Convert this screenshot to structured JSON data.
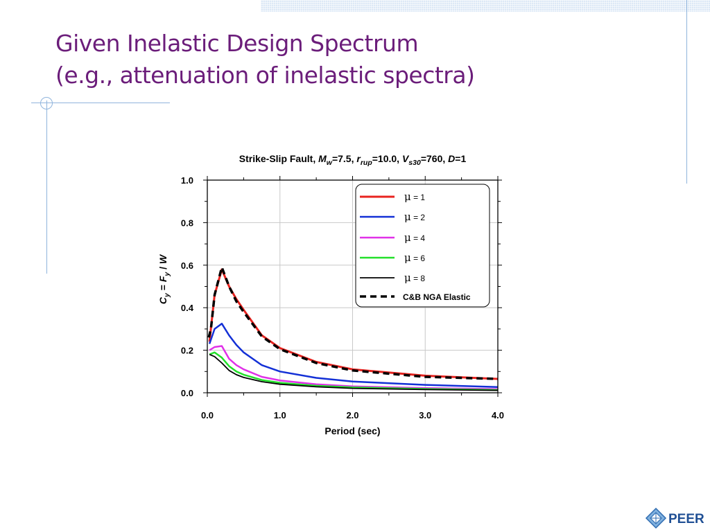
{
  "slide": {
    "title_line1": "Given Inelastic Design Spectrum",
    "title_line2": "(e.g., attenuation of inelastic spectra)",
    "logo_text": "PEER"
  },
  "colors": {
    "title": "#6b1d7a",
    "decor": "#8fb4dc",
    "band": "#dce8f6"
  },
  "chart_data": {
    "type": "line",
    "title_parts": [
      {
        "t": "Strike-Slip Fault, ",
        "style": "normal",
        "shift": "none"
      },
      {
        "t": "M",
        "style": "italic",
        "shift": "none"
      },
      {
        "t": "w",
        "style": "italic",
        "shift": "sub"
      },
      {
        "t": "=7.5, ",
        "style": "normal",
        "shift": "none"
      },
      {
        "t": "r",
        "style": "italic",
        "shift": "none"
      },
      {
        "t": "rup",
        "style": "italic",
        "shift": "sub"
      },
      {
        "t": "=10.0, ",
        "style": "normal",
        "shift": "none"
      },
      {
        "t": "V",
        "style": "italic",
        "shift": "none"
      },
      {
        "t": "s30",
        "style": "italic",
        "shift": "sub"
      },
      {
        "t": "=760, ",
        "style": "normal",
        "shift": "none"
      },
      {
        "t": "D",
        "style": "italic",
        "shift": "none"
      },
      {
        "t": "=1",
        "style": "normal",
        "shift": "none"
      }
    ],
    "xlabel": "Period (sec)",
    "ylabel_parts": [
      {
        "t": "C",
        "style": "italic",
        "shift": "none"
      },
      {
        "t": "y",
        "style": "italic",
        "shift": "sub"
      },
      {
        "t": " = ",
        "style": "normal",
        "shift": "none"
      },
      {
        "t": "F",
        "style": "italic",
        "shift": "none"
      },
      {
        "t": "y",
        "style": "italic",
        "shift": "sub"
      },
      {
        "t": " / ",
        "style": "normal",
        "shift": "none"
      },
      {
        "t": "W",
        "style": "italic",
        "shift": "none"
      }
    ],
    "xlim": [
      0,
      4
    ],
    "ylim": [
      0,
      1
    ],
    "xticks": [
      0,
      1,
      2,
      3,
      4
    ],
    "xtick_labels": [
      "0.0",
      "1.0",
      "2.0",
      "3.0",
      "4.0"
    ],
    "yticks": [
      0,
      0.2,
      0.4,
      0.6,
      0.8,
      1.0
    ],
    "ytick_labels": [
      "0.0",
      "0.2",
      "0.4",
      "0.6",
      "0.8",
      "1.0"
    ],
    "grid": true,
    "legend_position": "top-right",
    "series": [
      {
        "name": "μ = 1",
        "legend_symbol": "μ",
        "legend_text": " = 1",
        "color": "#e8231f",
        "dash": "solid",
        "width": 3,
        "x": [
          0.03,
          0.1,
          0.2,
          0.3,
          0.4,
          0.5,
          0.75,
          1.0,
          1.5,
          2.0,
          3.0,
          4.0
        ],
        "y": [
          0.24,
          0.46,
          0.58,
          0.5,
          0.44,
          0.39,
          0.27,
          0.21,
          0.145,
          0.11,
          0.08,
          0.065
        ]
      },
      {
        "name": "μ = 2",
        "legend_symbol": "μ",
        "legend_text": " = 2",
        "color": "#1330d6",
        "dash": "solid",
        "width": 2.5,
        "x": [
          0.03,
          0.1,
          0.2,
          0.3,
          0.4,
          0.5,
          0.75,
          1.0,
          1.5,
          2.0,
          3.0,
          4.0
        ],
        "y": [
          0.23,
          0.3,
          0.325,
          0.27,
          0.225,
          0.19,
          0.13,
          0.1,
          0.07,
          0.053,
          0.037,
          0.027
        ]
      },
      {
        "name": "μ = 4",
        "legend_symbol": "μ",
        "legend_text": " = 4",
        "color": "#e030e8",
        "dash": "solid",
        "width": 2.5,
        "x": [
          0.03,
          0.1,
          0.2,
          0.3,
          0.4,
          0.5,
          0.75,
          1.0,
          1.5,
          2.0,
          3.0,
          4.0
        ],
        "y": [
          0.2,
          0.215,
          0.22,
          0.16,
          0.13,
          0.11,
          0.075,
          0.058,
          0.04,
          0.03,
          0.022,
          0.017
        ]
      },
      {
        "name": "μ = 6",
        "legend_symbol": "μ",
        "legend_text": " = 6",
        "color": "#22e02a",
        "dash": "solid",
        "width": 2.5,
        "x": [
          0.03,
          0.1,
          0.2,
          0.3,
          0.4,
          0.5,
          0.75,
          1.0,
          1.5,
          2.0,
          3.0,
          4.0
        ],
        "y": [
          0.18,
          0.19,
          0.165,
          0.125,
          0.1,
          0.085,
          0.06,
          0.047,
          0.033,
          0.025,
          0.018,
          0.013
        ]
      },
      {
        "name": "μ = 8",
        "legend_symbol": "μ",
        "legend_text": " = 8",
        "color": "#000000",
        "dash": "solid",
        "width": 1.8,
        "x": [
          0.03,
          0.1,
          0.2,
          0.3,
          0.4,
          0.5,
          0.75,
          1.0,
          1.5,
          2.0,
          3.0,
          4.0
        ],
        "y": [
          0.18,
          0.17,
          0.14,
          0.105,
          0.085,
          0.072,
          0.052,
          0.04,
          0.028,
          0.021,
          0.015,
          0.011
        ]
      },
      {
        "name": "C&B NGA Elastic",
        "legend_symbol": "",
        "legend_text": "C&B NGA Elastic",
        "color": "#000000",
        "dash": "dashed",
        "width": 3.5,
        "x": [
          0.02,
          0.05,
          0.1,
          0.2,
          0.3,
          0.4,
          0.5,
          0.75,
          1.0,
          1.5,
          2.0,
          3.0,
          4.0
        ],
        "y": [
          0.26,
          0.3,
          0.46,
          0.59,
          0.5,
          0.43,
          0.38,
          0.265,
          0.205,
          0.14,
          0.105,
          0.075,
          0.065
        ]
      }
    ]
  }
}
